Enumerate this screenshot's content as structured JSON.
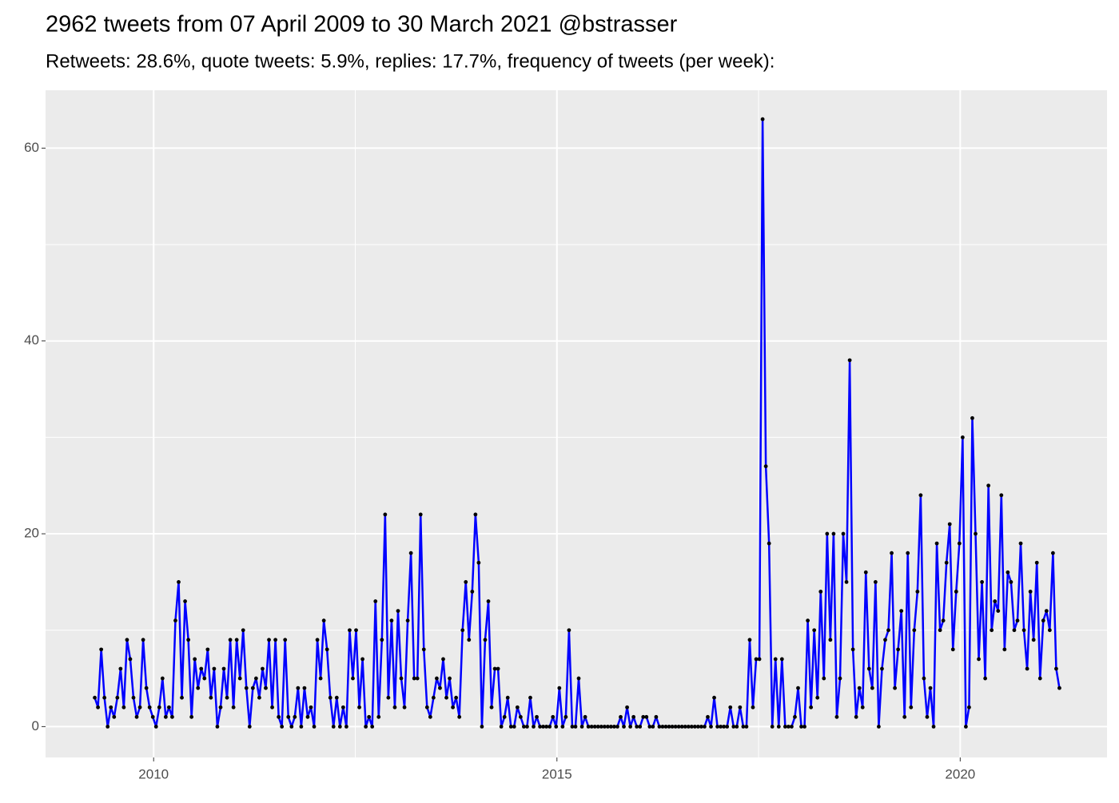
{
  "chart_data": {
    "type": "line",
    "title": "2962 tweets from 07 April 2009 to 30 March 2021 @bstrasser",
    "subtitle": "Retweets: 28.6%, quote tweets: 5.9%, replies: 17.7%, frequency of tweets (per week):",
    "color": "#0000ff",
    "marker_color": "#000000",
    "grid": true,
    "xlim": [
      2008.66,
      2021.82
    ],
    "ylim": [
      -3.2,
      66
    ],
    "xticks": [
      2010,
      2015,
      2020
    ],
    "yticks": [
      0,
      20,
      40,
      60
    ],
    "x": [
      2009.27,
      2009.31,
      2009.35,
      2009.39,
      2009.43,
      2009.47,
      2009.51,
      2009.55,
      2009.59,
      2009.63,
      2009.67,
      2009.71,
      2009.75,
      2009.79,
      2009.83,
      2009.87,
      2009.91,
      2009.95,
      2009.99,
      2010.03,
      2010.07,
      2010.11,
      2010.15,
      2010.19,
      2010.23,
      2010.27,
      2010.31,
      2010.35,
      2010.39,
      2010.43,
      2010.47,
      2010.51,
      2010.55,
      2010.59,
      2010.63,
      2010.67,
      2010.71,
      2010.75,
      2010.79,
      2010.83,
      2010.87,
      2010.91,
      2010.95,
      2010.99,
      2011.03,
      2011.07,
      2011.11,
      2011.15,
      2011.19,
      2011.23,
      2011.27,
      2011.31,
      2011.35,
      2011.39,
      2011.43,
      2011.47,
      2011.51,
      2011.55,
      2011.59,
      2011.63,
      2011.67,
      2011.71,
      2011.75,
      2011.79,
      2011.83,
      2011.87,
      2011.91,
      2011.95,
      2011.99,
      2012.03,
      2012.07,
      2012.11,
      2012.15,
      2012.19,
      2012.23,
      2012.27,
      2012.31,
      2012.35,
      2012.39,
      2012.43,
      2012.47,
      2012.51,
      2012.55,
      2012.59,
      2012.63,
      2012.67,
      2012.71,
      2012.75,
      2012.79,
      2012.83,
      2012.87,
      2012.91,
      2012.95,
      2012.99,
      2013.03,
      2013.07,
      2013.11,
      2013.15,
      2013.19,
      2013.23,
      2013.27,
      2013.31,
      2013.35,
      2013.39,
      2013.43,
      2013.47,
      2013.51,
      2013.55,
      2013.59,
      2013.63,
      2013.67,
      2013.71,
      2013.75,
      2013.79,
      2013.83,
      2013.87,
      2013.91,
      2013.95,
      2013.99,
      2014.03,
      2014.07,
      2014.11,
      2014.15,
      2014.19,
      2014.23,
      2014.27,
      2014.31,
      2014.35,
      2014.39,
      2014.43,
      2014.47,
      2014.51,
      2014.55,
      2014.59,
      2014.63,
      2014.67,
      2014.71,
      2014.75,
      2014.79,
      2014.83,
      2014.87,
      2014.91,
      2014.95,
      2014.99,
      2015.03,
      2015.07,
      2015.11,
      2015.15,
      2015.19,
      2015.23,
      2015.27,
      2015.31,
      2015.35,
      2015.39,
      2015.43,
      2015.47,
      2015.51,
      2015.55,
      2015.59,
      2015.63,
      2015.67,
      2015.71,
      2015.75,
      2015.79,
      2015.83,
      2015.87,
      2015.91,
      2015.95,
      2015.99,
      2016.03,
      2016.07,
      2016.11,
      2016.15,
      2016.19,
      2016.23,
      2016.27,
      2016.31,
      2016.35,
      2016.39,
      2016.43,
      2016.47,
      2016.51,
      2016.55,
      2016.59,
      2016.63,
      2016.67,
      2016.71,
      2016.75,
      2016.79,
      2016.83,
      2016.87,
      2016.91,
      2016.95,
      2016.99,
      2017.03,
      2017.07,
      2017.11,
      2017.15,
      2017.19,
      2017.23,
      2017.27,
      2017.31,
      2017.35,
      2017.39,
      2017.43,
      2017.47,
      2017.51,
      2017.55,
      2017.59,
      2017.63,
      2017.67,
      2017.71,
      2017.75,
      2017.79,
      2017.83,
      2017.87,
      2017.91,
      2017.95,
      2017.99,
      2018.03,
      2018.07,
      2018.11,
      2018.15,
      2018.19,
      2018.23,
      2018.27,
      2018.31,
      2018.35,
      2018.39,
      2018.43,
      2018.47,
      2018.51,
      2018.55,
      2018.59,
      2018.63,
      2018.67,
      2018.71,
      2018.75,
      2018.79,
      2018.83,
      2018.87,
      2018.91,
      2018.95,
      2018.99,
      2019.03,
      2019.07,
      2019.11,
      2019.15,
      2019.19,
      2019.23,
      2019.27,
      2019.31,
      2019.35,
      2019.39,
      2019.43,
      2019.47,
      2019.51,
      2019.55,
      2019.59,
      2019.63,
      2019.67,
      2019.71,
      2019.75,
      2019.79,
      2019.83,
      2019.87,
      2019.91,
      2019.95,
      2019.99,
      2020.03,
      2020.07,
      2020.11,
      2020.15,
      2020.19,
      2020.23,
      2020.27,
      2020.31,
      2020.35,
      2020.39,
      2020.43,
      2020.47,
      2020.51,
      2020.55,
      2020.59,
      2020.63,
      2020.67,
      2020.71,
      2020.75,
      2020.79,
      2020.83,
      2020.87,
      2020.91,
      2020.95,
      2020.99,
      2021.03,
      2021.07,
      2021.11,
      2021.15,
      2021.19,
      2021.23
    ],
    "values": [
      3,
      2,
      8,
      3,
      0,
      2,
      1,
      3,
      6,
      2,
      9,
      7,
      3,
      1,
      2,
      9,
      4,
      2,
      1,
      0,
      2,
      5,
      1,
      2,
      1,
      11,
      15,
      3,
      13,
      9,
      1,
      7,
      4,
      6,
      5,
      8,
      3,
      6,
      0,
      2,
      6,
      3,
      9,
      2,
      9,
      5,
      10,
      4,
      0,
      4,
      5,
      3,
      6,
      4,
      9,
      2,
      9,
      1,
      0,
      9,
      1,
      0,
      1,
      4,
      0,
      4,
      1,
      2,
      0,
      9,
      5,
      11,
      8,
      3,
      0,
      3,
      0,
      2,
      0,
      10,
      5,
      10,
      2,
      7,
      0,
      1,
      0,
      13,
      1,
      9,
      22,
      3,
      11,
      2,
      12,
      5,
      2,
      11,
      18,
      5,
      5,
      22,
      8,
      2,
      1,
      3,
      5,
      4,
      7,
      3,
      5,
      2,
      3,
      1,
      10,
      15,
      9,
      14,
      22,
      17,
      0,
      9,
      13,
      2,
      6,
      6,
      0,
      1,
      3,
      0,
      0,
      2,
      1,
      0,
      0,
      3,
      0,
      1,
      0,
      0,
      0,
      0,
      1,
      0,
      4,
      0,
      1,
      10,
      0,
      0,
      5,
      0,
      1,
      0,
      0,
      0,
      0,
      0,
      0,
      0,
      0,
      0,
      0,
      1,
      0,
      2,
      0,
      1,
      0,
      0,
      1,
      1,
      0,
      0,
      1,
      0,
      0,
      0,
      0,
      0,
      0,
      0,
      0,
      0,
      0,
      0,
      0,
      0,
      0,
      0,
      1,
      0,
      3,
      0,
      0,
      0,
      0,
      2,
      0,
      0,
      2,
      0,
      0,
      9,
      2,
      7,
      7,
      63,
      27,
      19,
      0,
      7,
      0,
      7,
      0,
      0,
      0,
      1,
      4,
      0,
      0,
      11,
      2,
      10,
      3,
      14,
      5,
      20,
      9,
      20,
      1,
      5,
      20,
      15,
      38,
      8,
      1,
      4,
      2,
      16,
      6,
      4,
      15,
      0,
      6,
      9,
      10,
      18,
      4,
      8,
      12,
      1,
      18,
      2,
      10,
      14,
      24,
      5,
      1,
      4,
      0,
      19,
      10,
      11,
      17,
      21,
      8,
      14,
      19,
      30,
      0,
      2,
      32,
      20,
      7,
      15,
      5,
      25,
      10,
      13,
      12,
      24,
      8,
      16,
      15,
      10,
      11,
      19,
      10,
      6,
      14,
      9,
      17,
      5,
      11,
      12,
      10,
      18,
      6,
      4
    ]
  }
}
